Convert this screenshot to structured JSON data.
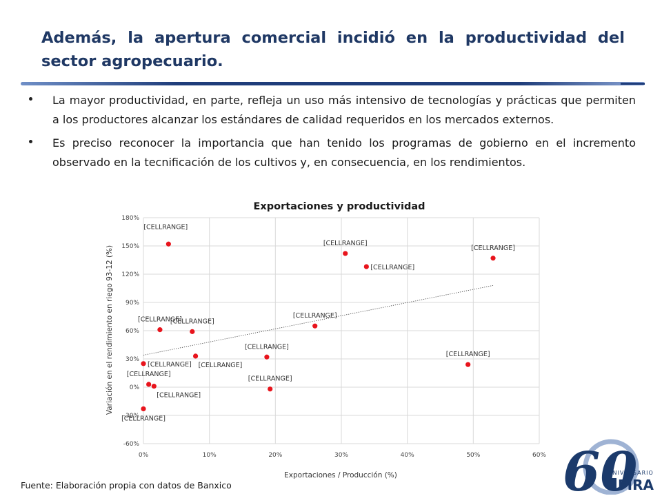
{
  "slide": {
    "title": "Además, la apertura comercial incidió en la productividad del sector agropecuario.",
    "bullets": [
      "La mayor productividad, en parte, refleja un uso más intensivo de tecnologías y prácticas que permiten a los productores alcanzar los estándares de calidad requeridos en los mercados externos.",
      "Es preciso reconocer la importancia que han tenido los programas de gobierno en el incremento observado en la tecnificación de los cultivos y, en consecuencia, en los rendimientos."
    ],
    "source": "Fuente: Elaboración propia con datos de Banxico"
  },
  "logo": {
    "number": "60",
    "tagline": "ANIVERSARIO",
    "brand": "FIRA",
    "colors": {
      "navy": "#1b3a6b",
      "light": "#9fb3d4"
    }
  },
  "colors": {
    "title": "#1f3864",
    "marker": "#e8141c",
    "trendline": "#444444",
    "gridline": "#d9d9d9"
  },
  "chart_data": {
    "type": "scatter",
    "title": "Exportaciones y productividad",
    "xlabel": "Exportaciones / Producción (%)",
    "ylabel": "Variación en el rendimiento en riego 93-12 (%)",
    "xlim": [
      0,
      60
    ],
    "ylim": [
      -60,
      180
    ],
    "x_ticks": [
      "0%",
      "10%",
      "20%",
      "30%",
      "40%",
      "50%",
      "60%"
    ],
    "y_ticks": [
      "-60%",
      "-30%",
      "0%",
      "30%",
      "60%",
      "90%",
      "120%",
      "150%",
      "180%"
    ],
    "grid": true,
    "legend": "none",
    "point_label": "[CELLRANGE]",
    "points": [
      {
        "x": 3.8,
        "y": 152,
        "label_pos": "nw"
      },
      {
        "x": 30.6,
        "y": 142,
        "label_pos": "n"
      },
      {
        "x": 33.8,
        "y": 128,
        "label_pos": "e"
      },
      {
        "x": 53.0,
        "y": 137,
        "label_pos": "n"
      },
      {
        "x": 2.5,
        "y": 61,
        "label_pos": "n"
      },
      {
        "x": 7.4,
        "y": 59,
        "label_pos": "n"
      },
      {
        "x": 26.0,
        "y": 65,
        "label_pos": "n"
      },
      {
        "x": 0.0,
        "y": 25,
        "label_pos": "e"
      },
      {
        "x": 7.9,
        "y": 33,
        "label_pos": "se"
      },
      {
        "x": 18.7,
        "y": 32,
        "label_pos": "n"
      },
      {
        "x": 49.2,
        "y": 24,
        "label_pos": "n"
      },
      {
        "x": 0.8,
        "y": 3,
        "label_pos": "n"
      },
      {
        "x": 1.6,
        "y": 1,
        "label_pos": "se"
      },
      {
        "x": 19.2,
        "y": -2,
        "label_pos": "n"
      },
      {
        "x": 0.0,
        "y": -23,
        "label_pos": "s"
      }
    ],
    "trendline": {
      "type": "linear",
      "x": [
        0,
        53
      ],
      "y": [
        34,
        108
      ]
    }
  }
}
